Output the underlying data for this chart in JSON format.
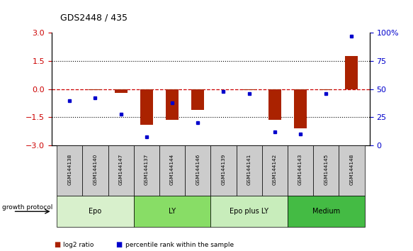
{
  "title": "GDS2448 / 435",
  "samples": [
    "GSM144138",
    "GSM144140",
    "GSM144147",
    "GSM144137",
    "GSM144144",
    "GSM144146",
    "GSM144139",
    "GSM144141",
    "GSM144142",
    "GSM144143",
    "GSM144145",
    "GSM144148"
  ],
  "log2_ratio": [
    0.0,
    -0.05,
    -0.2,
    -1.9,
    -1.65,
    -1.1,
    0.0,
    -0.05,
    -1.65,
    -2.1,
    -0.05,
    1.75
  ],
  "percentile_rank": [
    40,
    42,
    28,
    8,
    38,
    20,
    48,
    46,
    12,
    10,
    46,
    97
  ],
  "groups": [
    {
      "label": "Epo",
      "start": 0,
      "end": 3,
      "color": "#d8f0cc"
    },
    {
      "label": "LY",
      "start": 3,
      "end": 6,
      "color": "#88dd66"
    },
    {
      "label": "Epo plus LY",
      "start": 6,
      "end": 9,
      "color": "#c8edbb"
    },
    {
      "label": "Medium",
      "start": 9,
      "end": 12,
      "color": "#44bb44"
    }
  ],
  "bar_color": "#aa2200",
  "dot_color": "#0000cc",
  "left_ylim": [
    -3,
    3
  ],
  "left_yticks": [
    -3,
    -1.5,
    0,
    1.5,
    3
  ],
  "right_ylim": [
    0,
    100
  ],
  "right_yticks": [
    0,
    25,
    50,
    75,
    100
  ],
  "right_yticklabels": [
    "0",
    "25",
    "50",
    "75",
    "100%"
  ],
  "hline_color_zero": "#cc0000",
  "hline_color_15": "#000000",
  "sample_box_color": "#cccccc",
  "growth_protocol_label": "growth protocol"
}
